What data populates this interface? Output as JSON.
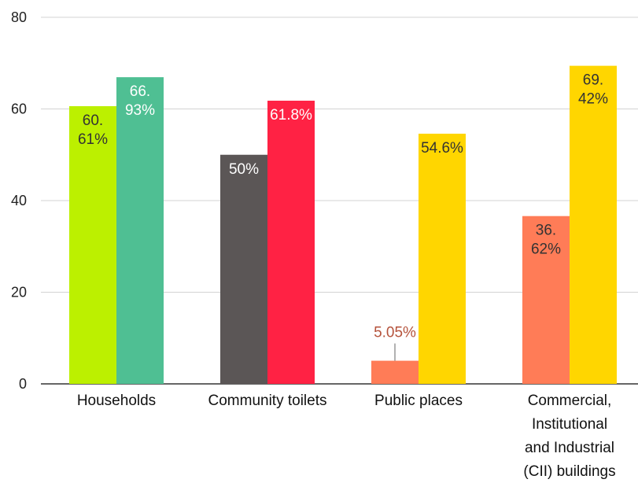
{
  "chart_data": {
    "type": "bar",
    "title": "",
    "xlabel": "",
    "ylabel": "",
    "ylim": [
      0,
      80
    ],
    "yticks": [
      "0",
      "20",
      "40",
      "60",
      "80"
    ],
    "grid": true,
    "legend": "none",
    "categories": [
      {
        "lines": [
          "Households"
        ]
      },
      {
        "lines": [
          "Community toilets"
        ]
      },
      {
        "lines": [
          "Public places"
        ]
      },
      {
        "lines": [
          "Commercial,",
          "Institutional",
          "and Industrial",
          "(CII) buildings"
        ]
      }
    ],
    "bars": [
      [
        {
          "value": 60.61,
          "label_lines": [
            "60.",
            "61%"
          ],
          "color": "#bcf000",
          "label_color": "#333333"
        },
        {
          "value": 66.93,
          "label_lines": [
            "66.",
            "93%"
          ],
          "color": "#4fbf93",
          "label_color": "#ffffff"
        }
      ],
      [
        {
          "value": 50,
          "label_lines": [
            "50%"
          ],
          "color": "#5b5656",
          "label_color": "#ffffff"
        },
        {
          "value": 61.8,
          "label_lines": [
            "61.8%"
          ],
          "color": "#ff2244",
          "label_color": "#ffffff"
        }
      ],
      [
        {
          "value": 5.05,
          "label_lines": [
            "5.05%"
          ],
          "color": "#ff7c57",
          "label_color": "#b5533c",
          "label_outside": true
        },
        {
          "value": 54.6,
          "label_lines": [
            "54.6%"
          ],
          "color": "#ffd600",
          "label_color": "#333333"
        }
      ],
      [
        {
          "value": 36.62,
          "label_lines": [
            "36.",
            "62%"
          ],
          "color": "#ff7c57",
          "label_color": "#333333"
        },
        {
          "value": 69.42,
          "label_lines": [
            "69.",
            "42%"
          ],
          "color": "#ffd600",
          "label_color": "#333333"
        }
      ]
    ]
  }
}
